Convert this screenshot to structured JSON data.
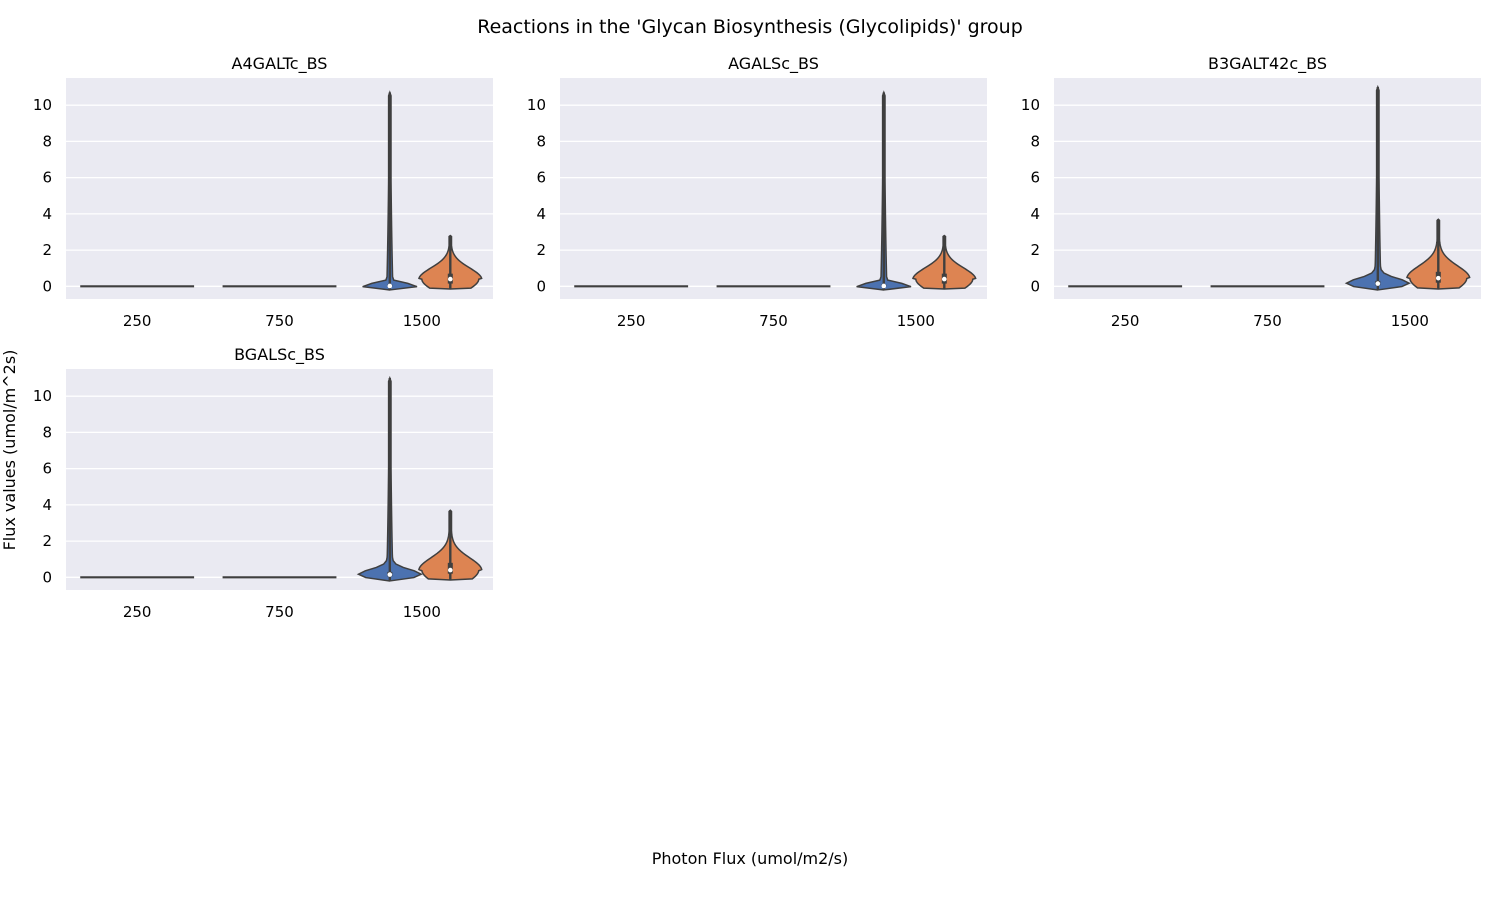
{
  "figure": {
    "title": "Reactions in the 'Glycan Biosynthesis (Glycolipids)' group",
    "xlabel": "Photon Flux (umol/m2/s)",
    "ylabel": "Flux values (umol/m^2s)"
  },
  "colors": {
    "background": "#eaeaf2",
    "grid": "#ffffff",
    "line": "#3f3f3f",
    "series_a": "#4c72b0",
    "series_b": "#dd8452"
  },
  "chart_data": [
    {
      "type": "violin",
      "title": "A4GALTc_BS",
      "categories": [
        "250",
        "750",
        "1500"
      ],
      "yticks": [
        0,
        2,
        4,
        6,
        8,
        10
      ],
      "ylim": [
        -0.7,
        11.5
      ],
      "violins": [
        {
          "category": "250",
          "color_key": "series_a",
          "min": 0,
          "max": 0,
          "median": 0,
          "q1": 0,
          "q3": 0,
          "flat": true
        },
        {
          "category": "750",
          "color_key": "series_a",
          "min": 0,
          "max": 0,
          "median": 0,
          "q1": 0,
          "q3": 0,
          "flat": true
        },
        {
          "category": "1500",
          "color_key": "series_a",
          "min": -0.2,
          "max": 10.7,
          "median": 0.02,
          "q1": 0.0,
          "q3": 0.1
        },
        {
          "category": "1500",
          "color_key": "series_b",
          "min": -0.15,
          "max": 2.8,
          "median": 0.4,
          "q1": 0.15,
          "q3": 0.7
        }
      ]
    },
    {
      "type": "violin",
      "title": "AGALSc_BS",
      "categories": [
        "250",
        "750",
        "1500"
      ],
      "yticks": [
        0,
        2,
        4,
        6,
        8,
        10
      ],
      "ylim": [
        -0.7,
        11.5
      ],
      "violins": [
        {
          "category": "250",
          "color_key": "series_a",
          "min": 0,
          "max": 0,
          "median": 0,
          "q1": 0,
          "q3": 0,
          "flat": true
        },
        {
          "category": "750",
          "color_key": "series_a",
          "min": 0,
          "max": 0,
          "median": 0,
          "q1": 0,
          "q3": 0,
          "flat": true
        },
        {
          "category": "1500",
          "color_key": "series_a",
          "min": -0.2,
          "max": 10.7,
          "median": 0.02,
          "q1": 0.0,
          "q3": 0.1
        },
        {
          "category": "1500",
          "color_key": "series_b",
          "min": -0.15,
          "max": 2.8,
          "median": 0.4,
          "q1": 0.15,
          "q3": 0.7
        }
      ]
    },
    {
      "type": "violin",
      "title": "B3GALT42c_BS",
      "categories": [
        "250",
        "750",
        "1500"
      ],
      "yticks": [
        0,
        2,
        4,
        6,
        8,
        10
      ],
      "ylim": [
        -0.7,
        11.5
      ],
      "violins": [
        {
          "category": "250",
          "color_key": "series_a",
          "min": 0,
          "max": 0,
          "median": 0,
          "q1": 0,
          "q3": 0,
          "flat": true
        },
        {
          "category": "750",
          "color_key": "series_a",
          "min": 0,
          "max": 0,
          "median": 0,
          "q1": 0,
          "q3": 0,
          "flat": true
        },
        {
          "category": "1500",
          "color_key": "series_a",
          "min": -0.2,
          "max": 11.0,
          "median": 0.15,
          "q1": 0.05,
          "q3": 0.3
        },
        {
          "category": "1500",
          "color_key": "series_b",
          "min": -0.15,
          "max": 3.7,
          "median": 0.45,
          "q1": 0.2,
          "q3": 0.8
        }
      ]
    },
    {
      "type": "violin",
      "title": "BGALSc_BS",
      "categories": [
        "250",
        "750",
        "1500"
      ],
      "yticks": [
        0,
        2,
        4,
        6,
        8,
        10
      ],
      "ylim": [
        -0.7,
        11.5
      ],
      "violins": [
        {
          "category": "250",
          "color_key": "series_a",
          "min": 0,
          "max": 0,
          "median": 0,
          "q1": 0,
          "q3": 0,
          "flat": true
        },
        {
          "category": "750",
          "color_key": "series_a",
          "min": 0,
          "max": 0,
          "median": 0,
          "q1": 0,
          "q3": 0,
          "flat": true
        },
        {
          "category": "1500",
          "color_key": "series_a",
          "min": -0.2,
          "max": 11.0,
          "median": 0.15,
          "q1": 0.05,
          "q3": 0.3
        },
        {
          "category": "1500",
          "color_key": "series_b",
          "min": -0.15,
          "max": 3.7,
          "median": 0.4,
          "q1": 0.2,
          "q3": 0.8
        }
      ]
    }
  ]
}
